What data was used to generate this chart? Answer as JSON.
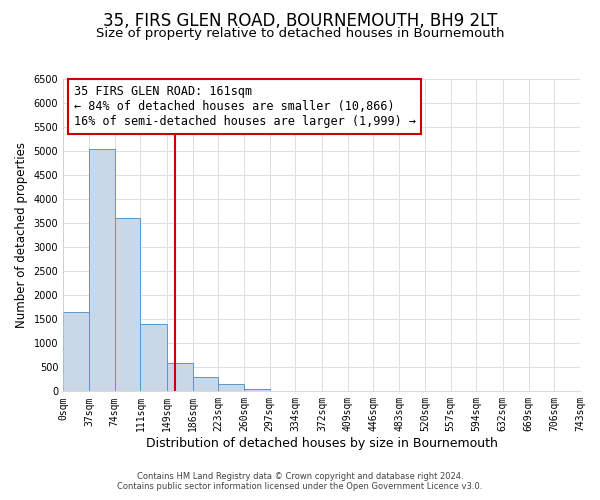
{
  "title": "35, FIRS GLEN ROAD, BOURNEMOUTH, BH9 2LT",
  "subtitle": "Size of property relative to detached houses in Bournemouth",
  "xlabel": "Distribution of detached houses by size in Bournemouth",
  "ylabel": "Number of detached properties",
  "bin_edges": [
    0,
    37,
    74,
    111,
    149,
    186,
    223,
    260,
    297,
    334,
    372,
    409,
    446,
    483,
    520,
    557,
    594,
    632,
    669,
    706,
    743
  ],
  "bar_heights": [
    1650,
    5050,
    3600,
    1400,
    600,
    300,
    150,
    50,
    10,
    5,
    0,
    0,
    0,
    0,
    0,
    0,
    0,
    0,
    0,
    0
  ],
  "bar_color": "#c8d8e8",
  "bar_edgecolor": "#5599cc",
  "red_line_x": 161,
  "ylim": [
    0,
    6500
  ],
  "annotation_text": "35 FIRS GLEN ROAD: 161sqm\n← 84% of detached houses are smaller (10,866)\n16% of semi-detached houses are larger (1,999) →",
  "annotation_box_color": "#ffffff",
  "annotation_box_edgecolor": "#cc0000",
  "footer_line1": "Contains HM Land Registry data © Crown copyright and database right 2024.",
  "footer_line2": "Contains public sector information licensed under the Open Government Licence v3.0.",
  "background_color": "#ffffff",
  "grid_color": "#d8e0e8",
  "title_fontsize": 12,
  "subtitle_fontsize": 9.5,
  "tick_label_fontsize": 7,
  "ylabel_fontsize": 8.5,
  "xlabel_fontsize": 9,
  "footer_fontsize": 6
}
